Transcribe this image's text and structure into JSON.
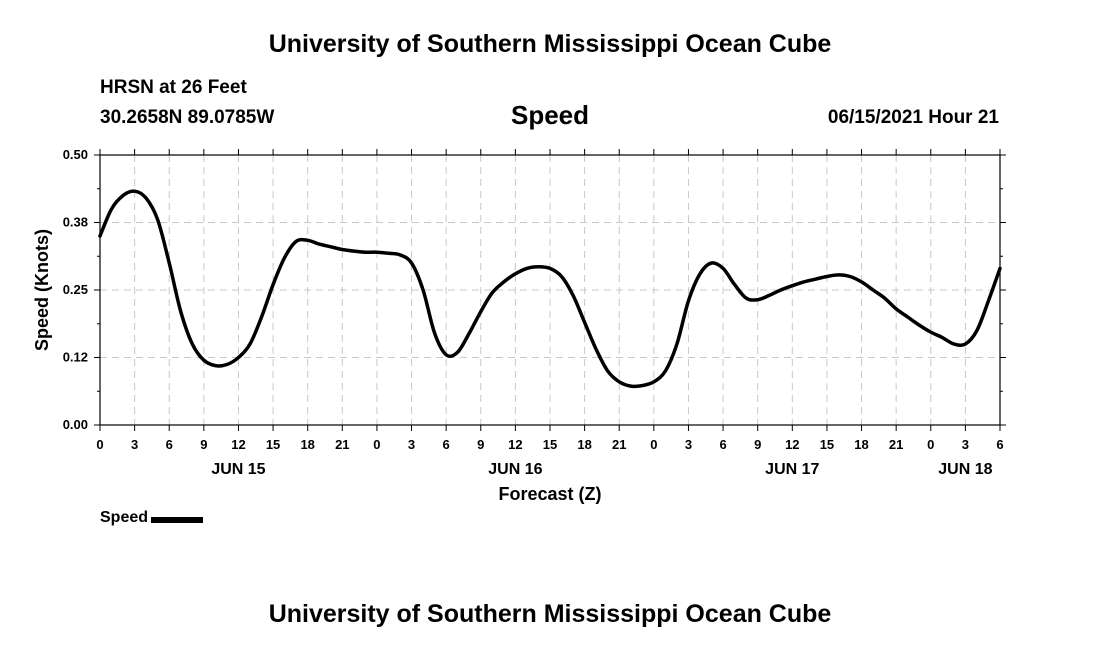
{
  "header": {
    "institution": "University of Southern Mississippi Ocean Cube",
    "station": "HRSN at 26 Feet",
    "coordinates": "30.2658N  89.0785W",
    "datetime": "06/15/2021 Hour 21"
  },
  "footer": {
    "institution": "University of Southern Mississippi Ocean Cube"
  },
  "legend": {
    "label": "Speed"
  },
  "chart_data": {
    "type": "line",
    "title": "Speed",
    "xlabel": "Forecast (Z)",
    "ylabel": "Speed (Knots)",
    "xlim": [
      0,
      78
    ],
    "ylim": [
      0,
      0.5
    ],
    "yticks": [
      0.0,
      0.125,
      0.25,
      0.375,
      0.5
    ],
    "ytick_labels": [
      "0.00",
      "0.12",
      "0.25",
      "0.38",
      "0.50"
    ],
    "xtick_labels": [
      "0",
      "3",
      "6",
      "9",
      "12",
      "15",
      "18",
      "21",
      "0",
      "3",
      "6",
      "9",
      "12",
      "15",
      "18",
      "21",
      "0",
      "3",
      "6",
      "9",
      "12",
      "15",
      "18",
      "21",
      "0",
      "3",
      "6"
    ],
    "day_labels": [
      {
        "label": "JUN 15",
        "hour": 12
      },
      {
        "label": "JUN 16",
        "hour": 36
      },
      {
        "label": "JUN 17",
        "hour": 60
      },
      {
        "label": "JUN 18",
        "hour": 75
      }
    ],
    "grid": true,
    "series": [
      {
        "name": "Speed",
        "x": [
          0,
          1,
          2,
          3,
          4,
          5,
          6,
          7,
          8,
          9,
          10,
          11,
          12,
          13,
          14,
          15,
          16,
          17,
          18,
          19,
          20,
          21,
          22,
          23,
          24,
          25,
          26,
          27,
          28,
          29,
          30,
          31,
          32,
          33,
          34,
          35,
          36,
          37,
          38,
          39,
          40,
          41,
          42,
          43,
          44,
          45,
          46,
          47,
          48,
          49,
          50,
          51,
          52,
          53,
          54,
          55,
          56,
          57,
          58,
          59,
          60,
          61,
          62,
          63,
          64,
          65,
          66,
          67,
          68,
          69,
          70,
          71,
          72,
          73,
          74,
          75,
          76,
          77,
          78
        ],
        "values": [
          0.35,
          0.4,
          0.425,
          0.433,
          0.42,
          0.38,
          0.3,
          0.21,
          0.15,
          0.12,
          0.11,
          0.112,
          0.125,
          0.15,
          0.2,
          0.26,
          0.31,
          0.34,
          0.342,
          0.335,
          0.33,
          0.325,
          0.322,
          0.32,
          0.32,
          0.318,
          0.315,
          0.3,
          0.25,
          0.17,
          0.13,
          0.135,
          0.17,
          0.21,
          0.245,
          0.265,
          0.28,
          0.29,
          0.293,
          0.29,
          0.275,
          0.24,
          0.19,
          0.14,
          0.1,
          0.08,
          0.072,
          0.073,
          0.08,
          0.1,
          0.15,
          0.23,
          0.28,
          0.3,
          0.29,
          0.26,
          0.235,
          0.232,
          0.24,
          0.25,
          0.258,
          0.265,
          0.27,
          0.275,
          0.278,
          0.275,
          0.265,
          0.25,
          0.235,
          0.215,
          0.2,
          0.185,
          0.172,
          0.162,
          0.15,
          0.15,
          0.175,
          0.23,
          0.29
        ]
      }
    ]
  }
}
